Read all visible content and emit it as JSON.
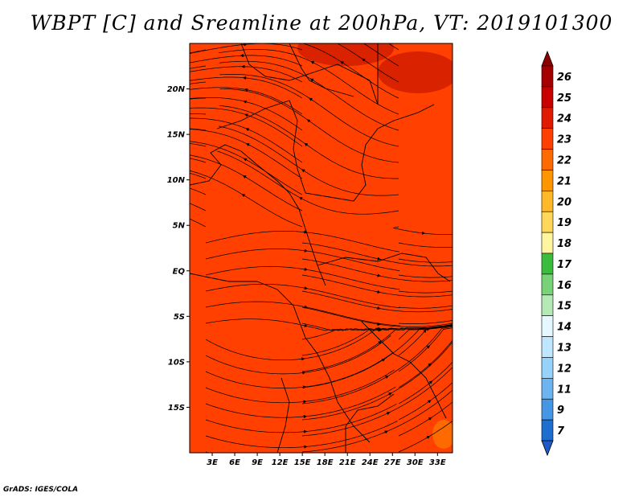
{
  "title": "WBPT [C] and Sreamline at 200hPa, VT: 2019101300",
  "credit": "GrADS: IGES/COLA",
  "map": {
    "variable": "WBPT",
    "units": "C",
    "level": "200hPa",
    "valid_time": "2019101300",
    "lat_range": [
      -20,
      25
    ],
    "lon_range": [
      0,
      35
    ],
    "lat_ticks": [
      {
        "value": 20,
        "label": "20N"
      },
      {
        "value": 15,
        "label": "15N"
      },
      {
        "value": 10,
        "label": "10N"
      },
      {
        "value": 5,
        "label": "5N"
      },
      {
        "value": 0,
        "label": "EQ"
      },
      {
        "value": -5,
        "label": "5S"
      },
      {
        "value": -10,
        "label": "10S"
      },
      {
        "value": -15,
        "label": "15S"
      }
    ],
    "lon_ticks": [
      {
        "value": 3,
        "label": "3E"
      },
      {
        "value": 6,
        "label": "6E"
      },
      {
        "value": 9,
        "label": "9E"
      },
      {
        "value": 12,
        "label": "12E"
      },
      {
        "value": 15,
        "label": "15E"
      },
      {
        "value": 18,
        "label": "18E"
      },
      {
        "value": 21,
        "label": "21E"
      },
      {
        "value": 24,
        "label": "24E"
      },
      {
        "value": 27,
        "label": "27E"
      },
      {
        "value": 30,
        "label": "30E"
      },
      {
        "value": 33,
        "label": "33E"
      }
    ],
    "field_color": "#ff4000",
    "warm_patch_color": "#d82200"
  },
  "colorbar": {
    "labels": [
      "26",
      "25",
      "24",
      "23",
      "22",
      "21",
      "20",
      "19",
      "18",
      "17",
      "16",
      "15",
      "14",
      "13",
      "12",
      "11",
      "9",
      "7"
    ],
    "colors": [
      "#a50000",
      "#c80000",
      "#e01a00",
      "#ff4000",
      "#ff6a00",
      "#ff9600",
      "#ffb928",
      "#ffd85a",
      "#fff5a0",
      "#3cbc3c",
      "#78d278",
      "#b4e8b4",
      "#e6f8ff",
      "#bee6ff",
      "#96d2fa",
      "#6eb4f0",
      "#4696e6",
      "#1e6ed2"
    ],
    "top_cap_color": "#8c0000",
    "bottom_cap_color": "#1e5ac8"
  }
}
